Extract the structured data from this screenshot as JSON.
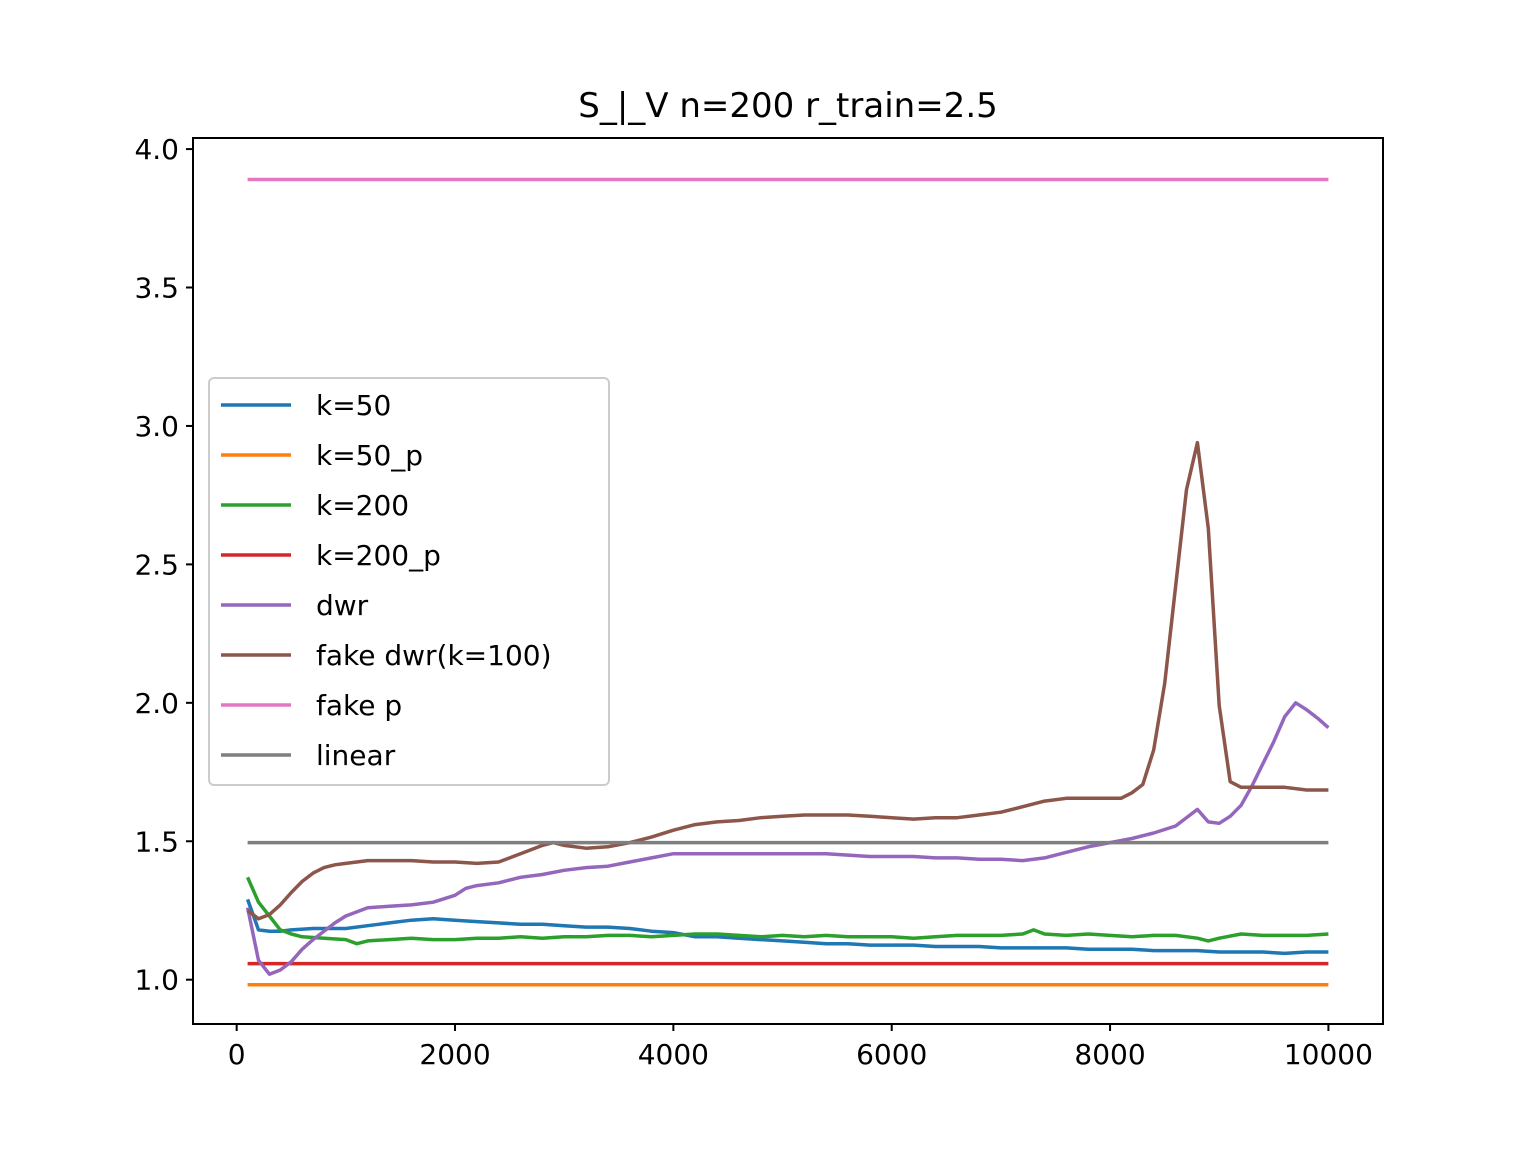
{
  "chart_data": {
    "type": "line",
    "title": "S_|_V n=200 r_train=2.5",
    "xlabel": "",
    "ylabel": "",
    "xlim": [
      -400,
      10500
    ],
    "ylim": [
      0.84,
      4.04
    ],
    "xticks": [
      0,
      2000,
      4000,
      6000,
      8000,
      10000
    ],
    "xtick_labels": [
      "0",
      "2000",
      "4000",
      "6000",
      "8000",
      "10000"
    ],
    "yticks": [
      1.0,
      1.5,
      2.0,
      2.5,
      3.0,
      3.5,
      4.0
    ],
    "ytick_labels": [
      "1.0",
      "1.5",
      "2.0",
      "2.5",
      "3.0",
      "3.5",
      "4.0"
    ],
    "grid": false,
    "legend_position": "center-left",
    "series": [
      {
        "name": "k=50",
        "color": "#1f77b4",
        "points": [
          [
            100,
            1.29
          ],
          [
            200,
            1.18
          ],
          [
            300,
            1.175
          ],
          [
            400,
            1.175
          ],
          [
            500,
            1.18
          ],
          [
            700,
            1.185
          ],
          [
            1000,
            1.185
          ],
          [
            1200,
            1.195
          ],
          [
            1400,
            1.205
          ],
          [
            1600,
            1.215
          ],
          [
            1800,
            1.22
          ],
          [
            2000,
            1.215
          ],
          [
            2200,
            1.21
          ],
          [
            2400,
            1.205
          ],
          [
            2600,
            1.2
          ],
          [
            2800,
            1.2
          ],
          [
            3000,
            1.195
          ],
          [
            3200,
            1.19
          ],
          [
            3400,
            1.19
          ],
          [
            3600,
            1.185
          ],
          [
            3800,
            1.175
          ],
          [
            4000,
            1.17
          ],
          [
            4200,
            1.155
          ],
          [
            4400,
            1.155
          ],
          [
            4600,
            1.15
          ],
          [
            4800,
            1.145
          ],
          [
            5000,
            1.14
          ],
          [
            5200,
            1.135
          ],
          [
            5400,
            1.13
          ],
          [
            5600,
            1.13
          ],
          [
            5800,
            1.125
          ],
          [
            6000,
            1.125
          ],
          [
            6200,
            1.125
          ],
          [
            6400,
            1.12
          ],
          [
            6600,
            1.12
          ],
          [
            6800,
            1.12
          ],
          [
            7000,
            1.115
          ],
          [
            7200,
            1.115
          ],
          [
            7400,
            1.115
          ],
          [
            7600,
            1.115
          ],
          [
            7800,
            1.11
          ],
          [
            8000,
            1.11
          ],
          [
            8200,
            1.11
          ],
          [
            8400,
            1.105
          ],
          [
            8600,
            1.105
          ],
          [
            8800,
            1.105
          ],
          [
            9000,
            1.1
          ],
          [
            9200,
            1.1
          ],
          [
            9400,
            1.1
          ],
          [
            9600,
            1.095
          ],
          [
            9800,
            1.1
          ],
          [
            10000,
            1.1
          ]
        ]
      },
      {
        "name": "k=50_p",
        "color": "#ff7f0e",
        "points": [
          [
            100,
            0.982
          ],
          [
            10000,
            0.982
          ]
        ]
      },
      {
        "name": "k=200",
        "color": "#2ca02c",
        "points": [
          [
            100,
            1.37
          ],
          [
            200,
            1.28
          ],
          [
            300,
            1.23
          ],
          [
            400,
            1.18
          ],
          [
            500,
            1.165
          ],
          [
            600,
            1.155
          ],
          [
            800,
            1.15
          ],
          [
            1000,
            1.145
          ],
          [
            1100,
            1.13
          ],
          [
            1200,
            1.14
          ],
          [
            1400,
            1.145
          ],
          [
            1600,
            1.15
          ],
          [
            1800,
            1.145
          ],
          [
            2000,
            1.145
          ],
          [
            2200,
            1.15
          ],
          [
            2400,
            1.15
          ],
          [
            2600,
            1.155
          ],
          [
            2800,
            1.15
          ],
          [
            3000,
            1.155
          ],
          [
            3200,
            1.155
          ],
          [
            3400,
            1.16
          ],
          [
            3600,
            1.16
          ],
          [
            3800,
            1.155
          ],
          [
            4000,
            1.16
          ],
          [
            4200,
            1.165
          ],
          [
            4400,
            1.165
          ],
          [
            4600,
            1.16
          ],
          [
            4800,
            1.155
          ],
          [
            5000,
            1.16
          ],
          [
            5200,
            1.155
          ],
          [
            5400,
            1.16
          ],
          [
            5600,
            1.155
          ],
          [
            5800,
            1.155
          ],
          [
            6000,
            1.155
          ],
          [
            6200,
            1.15
          ],
          [
            6400,
            1.155
          ],
          [
            6600,
            1.16
          ],
          [
            6800,
            1.16
          ],
          [
            7000,
            1.16
          ],
          [
            7200,
            1.165
          ],
          [
            7300,
            1.18
          ],
          [
            7400,
            1.165
          ],
          [
            7600,
            1.16
          ],
          [
            7800,
            1.165
          ],
          [
            8000,
            1.16
          ],
          [
            8200,
            1.155
          ],
          [
            8400,
            1.16
          ],
          [
            8600,
            1.16
          ],
          [
            8800,
            1.15
          ],
          [
            8900,
            1.14
          ],
          [
            9000,
            1.15
          ],
          [
            9200,
            1.165
          ],
          [
            9400,
            1.16
          ],
          [
            9600,
            1.16
          ],
          [
            9800,
            1.16
          ],
          [
            10000,
            1.165
          ]
        ]
      },
      {
        "name": "k=200_p",
        "color": "#d62728",
        "points": [
          [
            100,
            1.058
          ],
          [
            10000,
            1.058
          ]
        ]
      },
      {
        "name": "dwr",
        "color": "#9467bd",
        "points": [
          [
            100,
            1.26
          ],
          [
            200,
            1.07
          ],
          [
            300,
            1.02
          ],
          [
            400,
            1.035
          ],
          [
            500,
            1.065
          ],
          [
            600,
            1.11
          ],
          [
            700,
            1.145
          ],
          [
            800,
            1.175
          ],
          [
            900,
            1.205
          ],
          [
            1000,
            1.23
          ],
          [
            1200,
            1.26
          ],
          [
            1400,
            1.265
          ],
          [
            1600,
            1.27
          ],
          [
            1800,
            1.28
          ],
          [
            2000,
            1.305
          ],
          [
            2100,
            1.33
          ],
          [
            2200,
            1.34
          ],
          [
            2400,
            1.35
          ],
          [
            2600,
            1.37
          ],
          [
            2800,
            1.38
          ],
          [
            3000,
            1.395
          ],
          [
            3200,
            1.405
          ],
          [
            3400,
            1.41
          ],
          [
            3600,
            1.425
          ],
          [
            3800,
            1.44
          ],
          [
            4000,
            1.455
          ],
          [
            4200,
            1.455
          ],
          [
            4400,
            1.455
          ],
          [
            4600,
            1.455
          ],
          [
            4800,
            1.455
          ],
          [
            5000,
            1.455
          ],
          [
            5200,
            1.455
          ],
          [
            5400,
            1.455
          ],
          [
            5600,
            1.45
          ],
          [
            5800,
            1.445
          ],
          [
            6000,
            1.445
          ],
          [
            6200,
            1.445
          ],
          [
            6400,
            1.44
          ],
          [
            6600,
            1.44
          ],
          [
            6800,
            1.435
          ],
          [
            7000,
            1.435
          ],
          [
            7200,
            1.43
          ],
          [
            7400,
            1.44
          ],
          [
            7600,
            1.46
          ],
          [
            7800,
            1.48
          ],
          [
            8000,
            1.495
          ],
          [
            8200,
            1.51
          ],
          [
            8400,
            1.53
          ],
          [
            8600,
            1.555
          ],
          [
            8800,
            1.615
          ],
          [
            8900,
            1.57
          ],
          [
            9000,
            1.565
          ],
          [
            9100,
            1.59
          ],
          [
            9200,
            1.63
          ],
          [
            9300,
            1.7
          ],
          [
            9400,
            1.78
          ],
          [
            9500,
            1.86
          ],
          [
            9600,
            1.95
          ],
          [
            9700,
            2.0
          ],
          [
            9800,
            1.975
          ],
          [
            9900,
            1.945
          ],
          [
            10000,
            1.91
          ]
        ]
      },
      {
        "name": "fake dwr(k=100)",
        "color": "#8c564b",
        "points": [
          [
            100,
            1.25
          ],
          [
            200,
            1.22
          ],
          [
            300,
            1.235
          ],
          [
            400,
            1.27
          ],
          [
            500,
            1.315
          ],
          [
            600,
            1.355
          ],
          [
            700,
            1.385
          ],
          [
            800,
            1.405
          ],
          [
            900,
            1.415
          ],
          [
            1000,
            1.42
          ],
          [
            1200,
            1.43
          ],
          [
            1400,
            1.43
          ],
          [
            1600,
            1.43
          ],
          [
            1800,
            1.425
          ],
          [
            2000,
            1.425
          ],
          [
            2200,
            1.42
          ],
          [
            2400,
            1.425
          ],
          [
            2600,
            1.455
          ],
          [
            2800,
            1.485
          ],
          [
            2900,
            1.495
          ],
          [
            3000,
            1.485
          ],
          [
            3200,
            1.475
          ],
          [
            3400,
            1.48
          ],
          [
            3600,
            1.495
          ],
          [
            3800,
            1.515
          ],
          [
            4000,
            1.54
          ],
          [
            4200,
            1.56
          ],
          [
            4400,
            1.57
          ],
          [
            4600,
            1.575
          ],
          [
            4800,
            1.585
          ],
          [
            5000,
            1.59
          ],
          [
            5200,
            1.595
          ],
          [
            5400,
            1.595
          ],
          [
            5600,
            1.595
          ],
          [
            5800,
            1.59
          ],
          [
            6000,
            1.585
          ],
          [
            6200,
            1.58
          ],
          [
            6400,
            1.585
          ],
          [
            6600,
            1.585
          ],
          [
            6800,
            1.595
          ],
          [
            7000,
            1.605
          ],
          [
            7200,
            1.625
          ],
          [
            7400,
            1.645
          ],
          [
            7600,
            1.655
          ],
          [
            7800,
            1.655
          ],
          [
            8000,
            1.655
          ],
          [
            8100,
            1.655
          ],
          [
            8200,
            1.675
          ],
          [
            8300,
            1.705
          ],
          [
            8400,
            1.83
          ],
          [
            8500,
            2.07
          ],
          [
            8600,
            2.42
          ],
          [
            8700,
            2.77
          ],
          [
            8800,
            2.94
          ],
          [
            8900,
            2.63
          ],
          [
            9000,
            1.99
          ],
          [
            9100,
            1.715
          ],
          [
            9200,
            1.695
          ],
          [
            9400,
            1.695
          ],
          [
            9600,
            1.695
          ],
          [
            9800,
            1.685
          ],
          [
            10000,
            1.685
          ]
        ]
      },
      {
        "name": "fake p",
        "color": "#e377c2",
        "points": [
          [
            100,
            3.89
          ],
          [
            10000,
            3.89
          ]
        ]
      },
      {
        "name": "linear",
        "color": "#7f7f7f",
        "points": [
          [
            100,
            1.495
          ],
          [
            10000,
            1.495
          ]
        ]
      }
    ]
  }
}
